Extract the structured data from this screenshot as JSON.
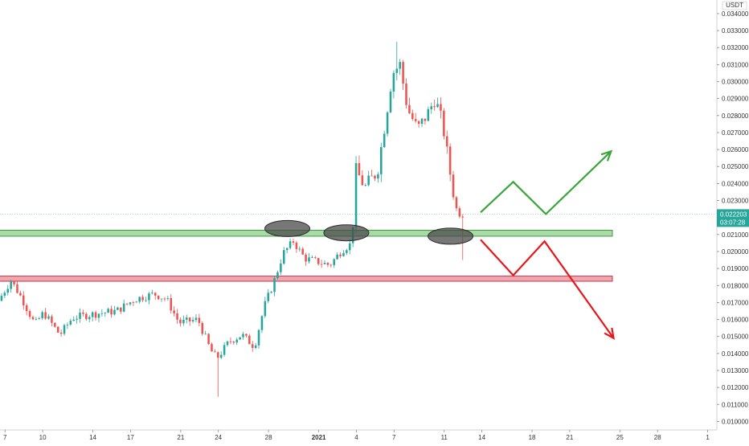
{
  "chart_data": {
    "type": "candlestick",
    "currency_label": "USDT",
    "price_tag": {
      "price": "0.022203",
      "countdown": "03:07:28",
      "value": 0.022203
    },
    "ylim": [
      0.0095,
      0.0348
    ],
    "y_ticks": [
      {
        "value": 0.034,
        "label": "0.034000"
      },
      {
        "value": 0.033,
        "label": "0.033000"
      },
      {
        "value": 0.032,
        "label": "0.032000"
      },
      {
        "value": 0.031,
        "label": "0.031000"
      },
      {
        "value": 0.03,
        "label": "0.030000"
      },
      {
        "value": 0.029,
        "label": "0.029000"
      },
      {
        "value": 0.028,
        "label": "0.028000"
      },
      {
        "value": 0.027,
        "label": "0.027000"
      },
      {
        "value": 0.026,
        "label": "0.026000"
      },
      {
        "value": 0.025,
        "label": "0.025000"
      },
      {
        "value": 0.024,
        "label": "0.024000"
      },
      {
        "value": 0.023,
        "label": "0.023000"
      },
      {
        "value": 0.021,
        "label": "0.021000"
      },
      {
        "value": 0.02,
        "label": "0.020000"
      },
      {
        "value": 0.019,
        "label": "0.019000"
      },
      {
        "value": 0.018,
        "label": "0.018000"
      },
      {
        "value": 0.017,
        "label": "0.017000"
      },
      {
        "value": 0.016,
        "label": "0.016000"
      },
      {
        "value": 0.015,
        "label": "0.015000"
      },
      {
        "value": 0.014,
        "label": "0.014000"
      },
      {
        "value": 0.013,
        "label": "0.013000"
      },
      {
        "value": 0.012,
        "label": "0.012000"
      },
      {
        "value": 0.011,
        "label": "0.011000"
      },
      {
        "value": 0.01,
        "label": "0.010000"
      }
    ],
    "x_ticks": [
      {
        "label": "7",
        "day": 0
      },
      {
        "label": "10",
        "day": 3
      },
      {
        "label": "14",
        "day": 7
      },
      {
        "label": "17",
        "day": 10
      },
      {
        "label": "21",
        "day": 14
      },
      {
        "label": "24",
        "day": 17
      },
      {
        "label": "28",
        "day": 21
      },
      {
        "label": "2021",
        "day": 25,
        "bold": true
      },
      {
        "label": "4",
        "day": 28
      },
      {
        "label": "7",
        "day": 31
      },
      {
        "label": "11",
        "day": 35
      },
      {
        "label": "14",
        "day": 38
      },
      {
        "label": "18",
        "day": 42
      },
      {
        "label": "21",
        "day": 45
      },
      {
        "label": "25",
        "day": 49
      },
      {
        "label": "28",
        "day": 52
      },
      {
        "label": "1",
        "day": 56
      }
    ],
    "xlim": [
      -0.4,
      56.6
    ],
    "zones": [
      {
        "name": "support",
        "from": 0.0209,
        "to": 0.02125,
        "color": "#a8dba8",
        "border": "#3d9b3d"
      },
      {
        "name": "resistance",
        "from": 0.01825,
        "to": 0.01855,
        "color": "#f4a6b0",
        "border": "#c0344b"
      }
    ],
    "highlight_ellipses": [
      {
        "day": 22.5,
        "price": 0.02135
      },
      {
        "day": 27.2,
        "price": 0.0211
      },
      {
        "day": 35.5,
        "price": 0.0209
      }
    ],
    "bullish_path": [
      [
        37.9,
        0.0223
      ],
      [
        40.5,
        0.0241
      ],
      [
        43.1,
        0.0222
      ],
      [
        48.3,
        0.0259
      ]
    ],
    "bearish_path": [
      [
        37.9,
        0.0207
      ],
      [
        40.5,
        0.0186
      ],
      [
        43.0,
        0.0206
      ],
      [
        48.5,
        0.0149
      ]
    ],
    "anchors": [
      {
        "day": -0.4,
        "price": 0.0171
      },
      {
        "day": 0.6,
        "price": 0.0183
      },
      {
        "day": 1.5,
        "price": 0.0172
      },
      {
        "day": 2.5,
        "price": 0.0157
      },
      {
        "day": 3.2,
        "price": 0.0164
      },
      {
        "day": 4.5,
        "price": 0.0151
      },
      {
        "day": 5.5,
        "price": 0.0161
      },
      {
        "day": 7.0,
        "price": 0.0163
      },
      {
        "day": 9.0,
        "price": 0.0165
      },
      {
        "day": 10.5,
        "price": 0.0172
      },
      {
        "day": 12.0,
        "price": 0.0175
      },
      {
        "day": 13.0,
        "price": 0.0172
      },
      {
        "day": 14.0,
        "price": 0.0158
      },
      {
        "day": 15.5,
        "price": 0.016
      },
      {
        "day": 16.5,
        "price": 0.0142
      },
      {
        "day": 17.0,
        "price": 0.0137
      },
      {
        "day": 18.0,
        "price": 0.0147
      },
      {
        "day": 19.0,
        "price": 0.0151
      },
      {
        "day": 20.0,
        "price": 0.0144
      },
      {
        "day": 20.8,
        "price": 0.0168
      },
      {
        "day": 21.5,
        "price": 0.0181
      },
      {
        "day": 22.3,
        "price": 0.0199
      },
      {
        "day": 23.1,
        "price": 0.0206
      },
      {
        "day": 24.0,
        "price": 0.0196
      },
      {
        "day": 25.0,
        "price": 0.0194
      },
      {
        "day": 26.0,
        "price": 0.0192
      },
      {
        "day": 27.0,
        "price": 0.0201
      },
      {
        "day": 27.8,
        "price": 0.0205
      },
      {
        "day": 28.0,
        "price": 0.0249
      },
      {
        "day": 28.8,
        "price": 0.0238
      },
      {
        "day": 29.8,
        "price": 0.0247
      },
      {
        "day": 30.5,
        "price": 0.028
      },
      {
        "day": 31.0,
        "price": 0.0305
      },
      {
        "day": 31.6,
        "price": 0.031
      },
      {
        "day": 32.2,
        "price": 0.0284
      },
      {
        "day": 33.0,
        "price": 0.0272
      },
      {
        "day": 33.8,
        "price": 0.0281
      },
      {
        "day": 34.4,
        "price": 0.029
      },
      {
        "day": 35.0,
        "price": 0.0275
      },
      {
        "day": 35.5,
        "price": 0.0251
      },
      {
        "day": 36.0,
        "price": 0.0226
      },
      {
        "day": 36.4,
        "price": 0.0222
      }
    ]
  }
}
